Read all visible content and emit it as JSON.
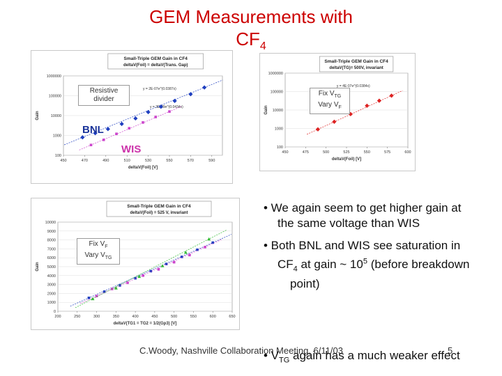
{
  "slide": {
    "title_main": "GEM Measurements with",
    "title_cf": "CF",
    "title_sub": "4",
    "footer": "C.Woody, Nashville Collaboration Meeting, 6/11/03",
    "slide_number": "5"
  },
  "bullets": {
    "b1_line1": "• We again seem to get higher gain at",
    "b1_line2": "the same voltage than WIS",
    "b2_line1": "• Both BNL and WIS see saturation in",
    "b2_cf": "CF",
    "b2_sub": "4",
    "b2_mid": " at gain ~ 10",
    "b2_sup": "5",
    "b2_end": " (before breakdown",
    "b2_line3": "point)",
    "b3_pre": "• V",
    "b3_sub": "TG",
    "b3_end": " again has a much weaker effect"
  },
  "annotations": {
    "resistive_divider": "Resistive divider",
    "bnl": "BNL",
    "wis": "WIS",
    "fix_vtg_fix": "Fix V",
    "fix_vtg_sub": "TG",
    "fix_vtg_vary": "Vary V",
    "fix_vtg_vary_sub": "F",
    "fix_vf_fix": "Fix V",
    "fix_vf_sub": "F",
    "fix_vf_vary": "Vary V",
    "fix_vf_vary_sub": "TG"
  },
  "chart_data": [
    {
      "type": "scatter",
      "title": "Small-Triple GEM Gain in CF4",
      "subtitle": "deltaV(Foil) = deltaV(Trans. Gap)",
      "xlabel": "deltaV(Foil) [V]",
      "ylabel": "Gain",
      "yscale": "log",
      "xlim": [
        450,
        600
      ],
      "ylim": [
        100,
        1000000
      ],
      "xticks": [
        "450",
        "470",
        "490",
        "510",
        "530",
        "550",
        "570",
        "590"
      ],
      "yticks": [
        "100",
        "1000",
        "10000",
        "100000",
        "1000000"
      ],
      "fit_labels": [
        "y = 2E-07e^(0.0387x)",
        "y = 3E-09e^(0.0434x)"
      ],
      "series": [
        {
          "name": "BNL",
          "color": "#1f3fbf",
          "x": [
            468,
            480,
            492,
            505,
            518,
            530,
            542,
            555,
            570,
            583
          ],
          "y": [
            800,
            1300,
            2100,
            3800,
            7200,
            15000,
            28000,
            55000,
            120000,
            260000
          ]
        },
        {
          "name": "WIS",
          "color": "#cc44cc",
          "x": [
            476,
            488,
            500,
            512,
            525,
            537,
            550
          ],
          "y": [
            330,
            600,
            1200,
            2300,
            4500,
            8500,
            16000
          ]
        }
      ]
    },
    {
      "type": "scatter",
      "title": "Small-Triple GEM Gain in CF4",
      "subtitle": "deltaV(TG)= 500V, invariant",
      "xlabel": "deltaV(Foil) [V]",
      "ylabel": "Gain",
      "yscale": "log",
      "xlim": [
        450,
        600
      ],
      "ylim": [
        100,
        1000000
      ],
      "xticks": [
        "450",
        "475",
        "500",
        "525",
        "550",
        "575",
        "600"
      ],
      "yticks": [
        "100",
        "1000",
        "10000",
        "100000",
        "1000000"
      ],
      "fit_labels": [
        "y = 4E-07e^(0.0384x)"
      ],
      "series": [
        {
          "name": "",
          "color": "#dd2222",
          "x": [
            490,
            510,
            530,
            550,
            565,
            580
          ],
          "y": [
            900,
            2300,
            6000,
            17000,
            32000,
            60000
          ]
        }
      ]
    },
    {
      "type": "scatter",
      "title": "Small-Triple GEM Gain in CF4",
      "subtitle": "deltaV(Foil) = 525 V, invariant",
      "xlabel": "deltaV(TG1 = TG2 = 1/2(Gp3) [V]",
      "ylabel": "Gain",
      "xlim": [
        200,
        650
      ],
      "ylim": [
        0,
        10000
      ],
      "xticks": [
        "200",
        "250",
        "300",
        "350",
        "400",
        "450",
        "500",
        "550",
        "600",
        "650"
      ],
      "yticks": [
        "0",
        "1000",
        "2000",
        "3000",
        "4000",
        "5000",
        "6000",
        "7000",
        "8000",
        "9000",
        "10000"
      ],
      "series": [
        {
          "name": "",
          "color": "#1f3fbf",
          "x": [
            280,
            320,
            360,
            400,
            440,
            480,
            520,
            560,
            600
          ],
          "y": [
            1500,
            2200,
            2900,
            3700,
            4500,
            5300,
            6100,
            6900,
            7700
          ]
        },
        {
          "name": "",
          "color": "#cc44cc",
          "x": [
            300,
            340,
            380,
            420,
            460,
            500,
            540,
            580
          ],
          "y": [
            1700,
            2500,
            3200,
            4000,
            4700,
            5500,
            6300,
            7200
          ]
        },
        {
          "name": "",
          "color": "#33bb33",
          "x": [
            290,
            350,
            410,
            470,
            530,
            590
          ],
          "y": [
            1400,
            2600,
            3900,
            5100,
            6600,
            8100
          ]
        }
      ]
    }
  ]
}
